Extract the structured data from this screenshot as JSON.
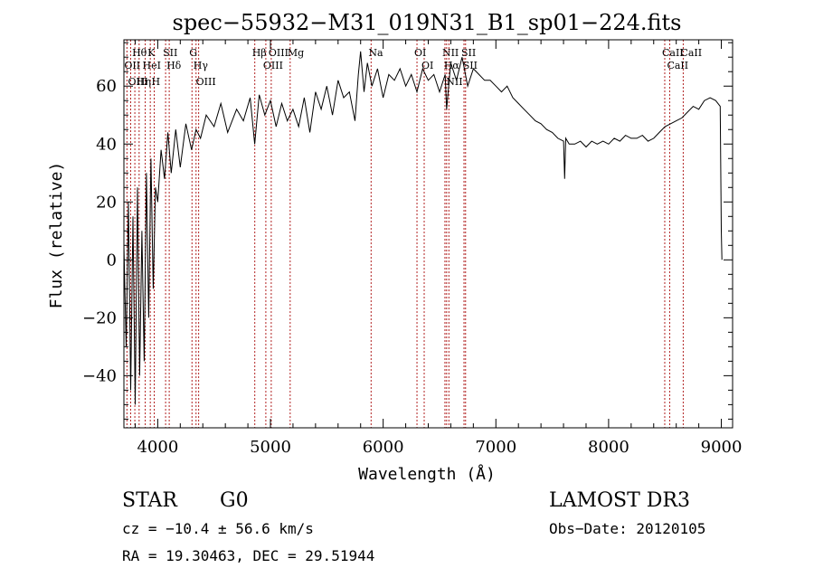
{
  "chart_data": {
    "type": "line",
    "title": "spec−55932−M31_019N31_B1_sp01−224.fits",
    "xlabel": "Wavelength (Å)",
    "ylabel": "Flux (relative)",
    "xlim": [
      3700,
      9100
    ],
    "ylim": [
      -58,
      76
    ],
    "xticks": [
      4000,
      5000,
      6000,
      7000,
      8000,
      9000
    ],
    "yticks": [
      -40,
      -20,
      0,
      20,
      40,
      60
    ],
    "xtick_labels": [
      "4000",
      "5000",
      "6000",
      "7000",
      "8000",
      "9000"
    ],
    "ytick_labels": [
      "−40",
      "−20",
      "0",
      "20",
      "40",
      "60"
    ],
    "series": [
      {
        "name": "flux",
        "x": [
          3700,
          3720,
          3740,
          3760,
          3780,
          3800,
          3820,
          3840,
          3860,
          3880,
          3900,
          3920,
          3940,
          3960,
          3980,
          4000,
          4030,
          4060,
          4090,
          4120,
          4160,
          4200,
          4250,
          4300,
          4340,
          4380,
          4430,
          4500,
          4560,
          4620,
          4700,
          4760,
          4820,
          4860,
          4900,
          4950,
          5000,
          5050,
          5100,
          5150,
          5200,
          5250,
          5300,
          5350,
          5400,
          5450,
          5500,
          5550,
          5600,
          5650,
          5700,
          5750,
          5780,
          5800,
          5830,
          5860,
          5900,
          5950,
          6000,
          6050,
          6100,
          6150,
          6200,
          6250,
          6300,
          6350,
          6400,
          6450,
          6500,
          6550,
          6563,
          6600,
          6650,
          6700,
          6750,
          6800,
          6850,
          6900,
          6950,
          7000,
          7050,
          7100,
          7150,
          7200,
          7250,
          7300,
          7350,
          7400,
          7450,
          7500,
          7550,
          7600,
          7610,
          7620,
          7650,
          7700,
          7750,
          7800,
          7850,
          7900,
          7950,
          8000,
          8050,
          8100,
          8150,
          8200,
          8250,
          8300,
          8350,
          8400,
          8450,
          8500,
          8550,
          8600,
          8650,
          8700,
          8750,
          8800,
          8850,
          8900,
          8950,
          8990,
          9000,
          9005
        ],
        "y": [
          5,
          -30,
          20,
          -45,
          15,
          -50,
          25,
          -40,
          10,
          -35,
          30,
          -20,
          35,
          -10,
          25,
          20,
          38,
          28,
          44,
          30,
          45,
          32,
          47,
          38,
          45,
          42,
          50,
          46,
          54,
          44,
          52,
          48,
          56,
          40,
          57,
          50,
          55,
          46,
          54,
          48,
          52,
          46,
          56,
          44,
          58,
          52,
          60,
          50,
          62,
          56,
          58,
          48,
          64,
          72,
          58,
          68,
          60,
          66,
          56,
          64,
          62,
          66,
          60,
          64,
          58,
          66,
          62,
          64,
          58,
          64,
          52,
          68,
          62,
          70,
          60,
          66,
          64,
          62,
          62,
          60,
          58,
          60,
          56,
          54,
          52,
          50,
          48,
          47,
          45,
          44,
          42,
          41,
          28,
          42,
          40,
          40,
          41,
          39,
          41,
          40,
          41,
          40,
          42,
          41,
          43,
          42,
          42,
          43,
          41,
          42,
          44,
          46,
          47,
          48,
          49,
          51,
          53,
          52,
          55,
          56,
          55,
          53,
          10,
          0
        ]
      }
    ],
    "spectral_lines": [
      {
        "label": "Hθ",
        "wavelength": 3797
      },
      {
        "label": "OII",
        "wavelength": 3727
      },
      {
        "label": "OIII",
        "wavelength": 3760
      },
      {
        "label": "Hη",
        "wavelength": 3835
      },
      {
        "label": "HeI",
        "wavelength": 3889
      },
      {
        "label": "K",
        "wavelength": 3934
      },
      {
        "label": "H",
        "wavelength": 3969
      },
      {
        "label": "SII",
        "wavelength": 4070
      },
      {
        "label": "Hδ",
        "wavelength": 4102
      },
      {
        "label": "G",
        "wavelength": 4304
      },
      {
        "label": "Hγ",
        "wavelength": 4340
      },
      {
        "label": "OIII",
        "wavelength": 4363
      },
      {
        "label": "Hβ",
        "wavelength": 4861
      },
      {
        "label": "OIII",
        "wavelength": 4959
      },
      {
        "label": "OIII",
        "wavelength": 5007
      },
      {
        "label": "Mg",
        "wavelength": 5175
      },
      {
        "label": "Na",
        "wavelength": 5893
      },
      {
        "label": "OI",
        "wavelength": 6300
      },
      {
        "label": "OI",
        "wavelength": 6364
      },
      {
        "label": "NII",
        "wavelength": 6548
      },
      {
        "label": "Hα",
        "wavelength": 6563
      },
      {
        "label": "NII",
        "wavelength": 6583
      },
      {
        "label": "SII",
        "wavelength": 6717
      },
      {
        "label": "SII",
        "wavelength": 6731
      },
      {
        "label": "CaII",
        "wavelength": 8498
      },
      {
        "label": "CaII",
        "wavelength": 8542
      },
      {
        "label": "CaII",
        "wavelength": 8662
      }
    ]
  },
  "info": {
    "object_type": "STAR",
    "subclass": "G0",
    "survey": "LAMOST DR3",
    "cz": "cz = −10.4 ± 56.6 km/s",
    "obs_date": "Obs−Date: 20120105",
    "coords": "RA =  19.30463, DEC =  29.51944"
  },
  "colors": {
    "spectrum": "#000000",
    "line_markers": "#b22222"
  }
}
